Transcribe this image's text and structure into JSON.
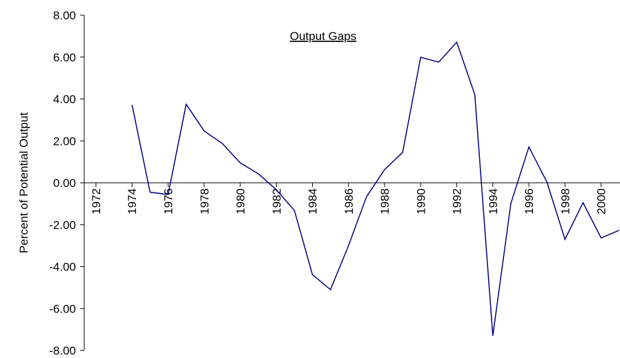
{
  "chart_data": {
    "type": "line",
    "title": "Output Gaps",
    "y_label": "Percent of Potential Output",
    "x": [
      1974,
      1975,
      1976,
      1977,
      1978,
      1979,
      1980,
      1981,
      1982,
      1983,
      1984,
      1985,
      1986,
      1987,
      1988,
      1989,
      1990,
      1991,
      1992,
      1993,
      1994,
      1995,
      1996,
      1997,
      1998,
      1999,
      2000,
      2001
    ],
    "series": [
      {
        "name": "Output Gap",
        "color": "#000080",
        "values": [
          3.72,
          -0.45,
          -0.56,
          3.75,
          2.47,
          1.88,
          0.95,
          0.43,
          -0.33,
          -1.32,
          -4.38,
          -5.1,
          -3.0,
          -0.66,
          0.63,
          1.45,
          5.99,
          5.76,
          6.71,
          4.21,
          -7.3,
          -0.99,
          1.71,
          0.03,
          -2.7,
          -0.95,
          -2.63,
          -2.27
        ]
      }
    ],
    "xlim": [
      1971.35,
      2001.05
    ],
    "xticks": [
      1972,
      1974,
      1976,
      1978,
      1980,
      1982,
      1984,
      1986,
      1988,
      1990,
      1992,
      1994,
      1996,
      1998,
      2000
    ],
    "ylim": [
      -8,
      8
    ],
    "yticks": [
      {
        "value": -8,
        "label": "-8.00"
      },
      {
        "value": -6,
        "label": "-6.00"
      },
      {
        "value": -4,
        "label": "-4.00"
      },
      {
        "value": -2,
        "label": "-2.00"
      },
      {
        "value": 0,
        "label": "0.00"
      },
      {
        "value": 2,
        "label": "2.00"
      },
      {
        "value": 4,
        "label": "4.00"
      },
      {
        "value": 6,
        "label": "6.00"
      },
      {
        "value": 8,
        "label": "8.00"
      }
    ]
  }
}
